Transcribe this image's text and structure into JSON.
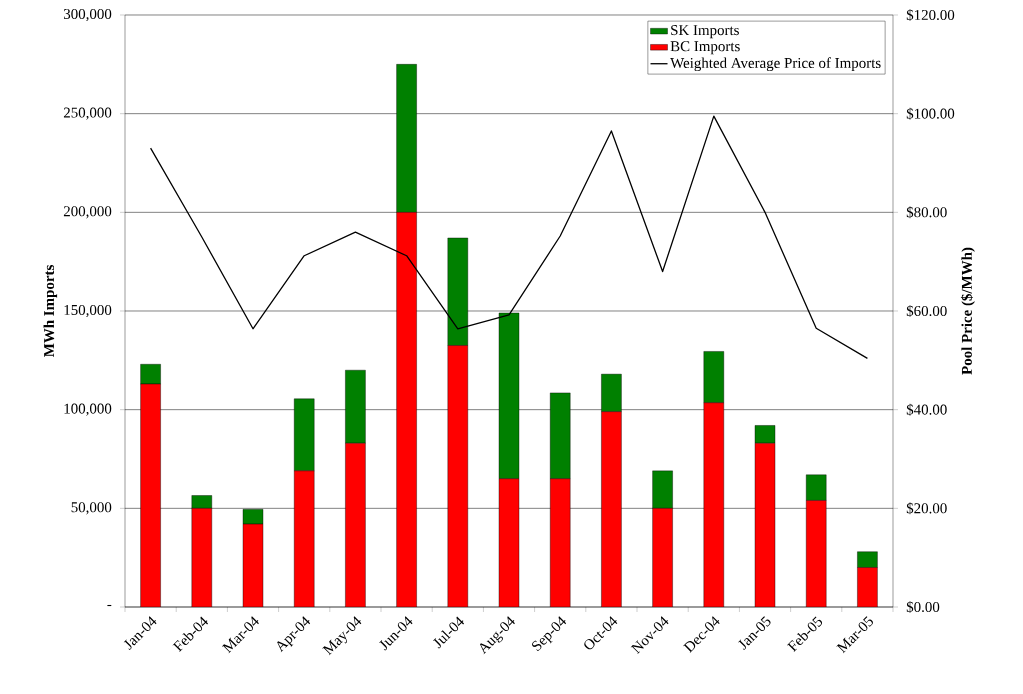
{
  "chart_data": {
    "type": "bar",
    "stacked": true,
    "ylabel": "MWh Imports",
    "y2label": "Pool Price ($/MWh)",
    "categories": [
      "Jan-04",
      "Feb-04",
      "Mar-04",
      "Apr-04",
      "May-04",
      "Jun-04",
      "Jul-04",
      "Aug-04",
      "Sep-04",
      "Oct-04",
      "Nov-04",
      "Dec-04",
      "Jan-05",
      "Feb-05",
      "Mar-05"
    ],
    "series": [
      {
        "name": "BC Imports",
        "color": "#ff0000",
        "values": [
          113000,
          50000,
          42000,
          69000,
          83000,
          200000,
          132500,
          65000,
          65000,
          99000,
          50000,
          103500,
          83000,
          54000,
          20000
        ]
      },
      {
        "name": "SK Imports",
        "color": "#008000",
        "values": [
          10000,
          6500,
          7500,
          36500,
          37000,
          75000,
          54500,
          84000,
          43500,
          19000,
          19000,
          26000,
          9000,
          13000,
          8000
        ]
      },
      {
        "name": "Weighted Average Price of Imports",
        "type": "line",
        "axis": "y2",
        "color": "#000000",
        "values": [
          93,
          75,
          56.4,
          71.2,
          76,
          71.2,
          56.4,
          59.2,
          75.2,
          96.5,
          68,
          99.5,
          80,
          56.5,
          50.4
        ]
      }
    ],
    "ylim": [
      0,
      300000
    ],
    "yticks": [
      {
        "value": 0,
        "label": "-"
      },
      {
        "value": 50000,
        "label": "50,000"
      },
      {
        "value": 100000,
        "label": "100,000"
      },
      {
        "value": 150000,
        "label": "150,000"
      },
      {
        "value": 200000,
        "label": "200,000"
      },
      {
        "value": 250000,
        "label": "250,000"
      },
      {
        "value": 300000,
        "label": "300,000"
      }
    ],
    "y2lim": [
      0,
      120
    ],
    "y2ticks": [
      {
        "value": 0,
        "label": "$0.00"
      },
      {
        "value": 20,
        "label": "$20.00"
      },
      {
        "value": 40,
        "label": "$40.00"
      },
      {
        "value": 60,
        "label": "$60.00"
      },
      {
        "value": 80,
        "label": "$80.00"
      },
      {
        "value": 100,
        "label": "$100.00"
      },
      {
        "value": 120,
        "label": "$120.00"
      }
    ],
    "grid": "y",
    "legend": "top right",
    "marker": "none",
    "line_style": "solid"
  }
}
